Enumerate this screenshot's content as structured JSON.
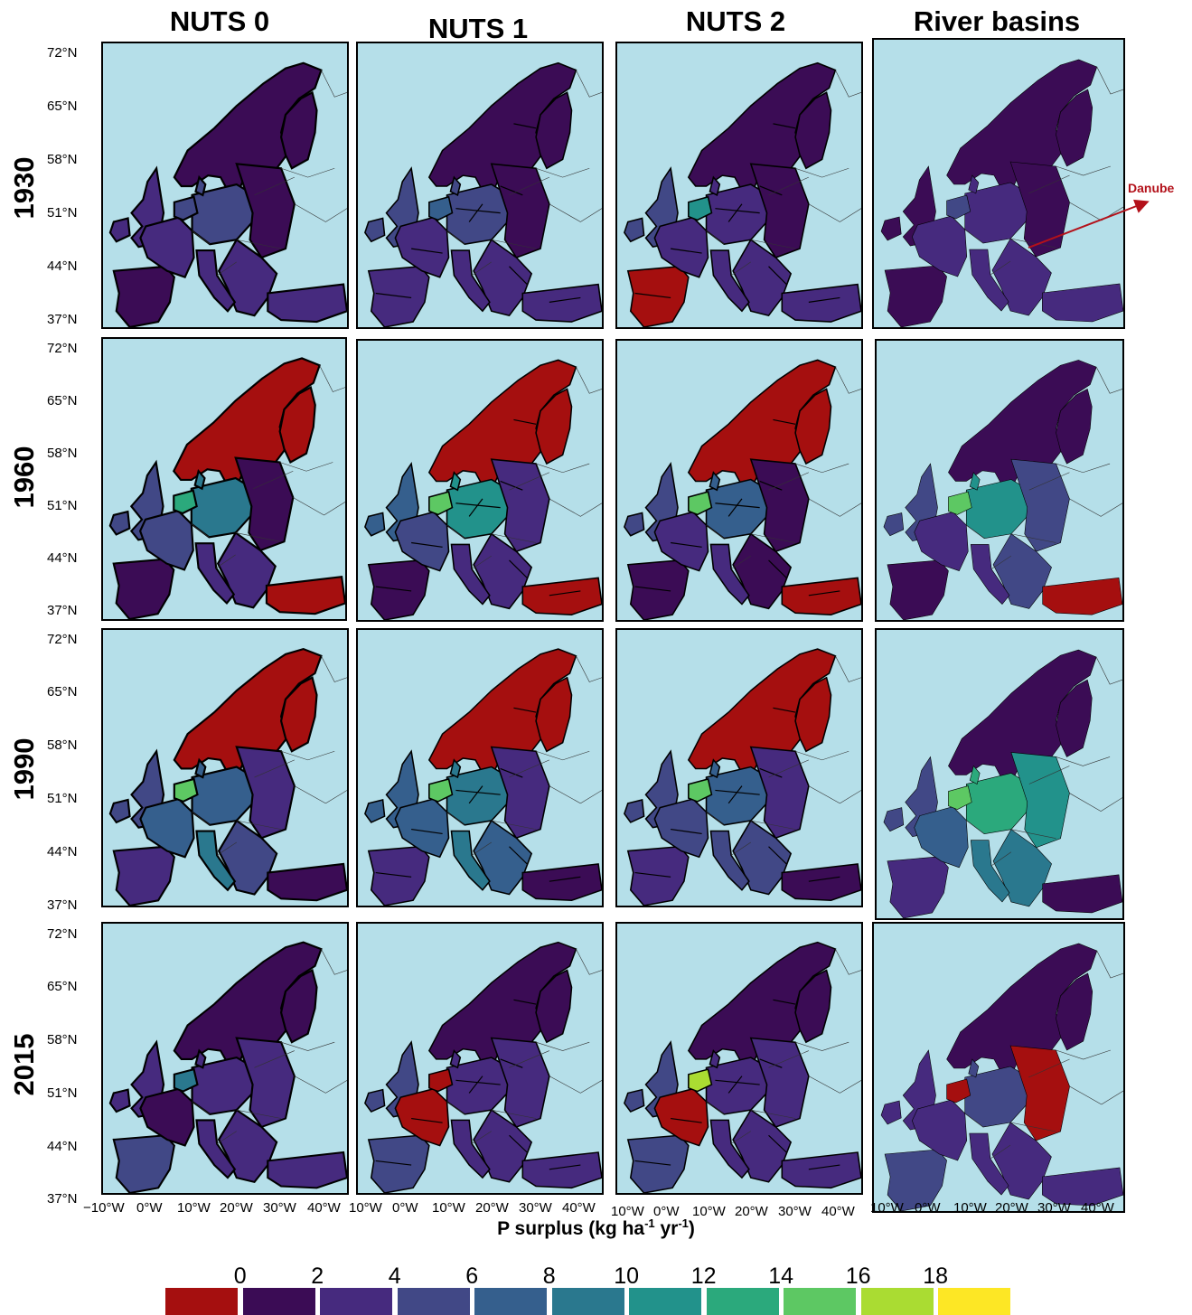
{
  "columns": [
    {
      "label": "NUTS 0"
    },
    {
      "label": "NUTS 1"
    },
    {
      "label": "NUTS 2"
    },
    {
      "label": "River basins"
    }
  ],
  "rows": [
    {
      "year": "1930"
    },
    {
      "year": "1960"
    },
    {
      "year": "1990"
    },
    {
      "year": "2015"
    }
  ],
  "lat_ticks": [
    "72°N",
    "65°N",
    "58°N",
    "51°N",
    "44°N",
    "37°N"
  ],
  "lon_ticks": [
    "−10°W",
    "0°W",
    "10°W",
    "20°W",
    "30°W",
    "40°W"
  ],
  "annotation": {
    "text": "Danube",
    "color": "#b3111a"
  },
  "legend": {
    "title_main": "P surplus (kg ha",
    "title_exp1": "-1",
    "title_mid": " yr",
    "title_exp2": "-1",
    "title_end": ")",
    "labels": [
      "0",
      "2",
      "4",
      "6",
      "8",
      "10",
      "12",
      "14",
      "16",
      "18"
    ],
    "colors": [
      "#a50f0f",
      "#3b0c55",
      "#462a7e",
      "#414886",
      "#355f8d",
      "#2a788e",
      "#22928b",
      "#2ba97c",
      "#5dc863",
      "#aadc32",
      "#fde725"
    ]
  },
  "ocean_color": "#b5dfe9"
}
